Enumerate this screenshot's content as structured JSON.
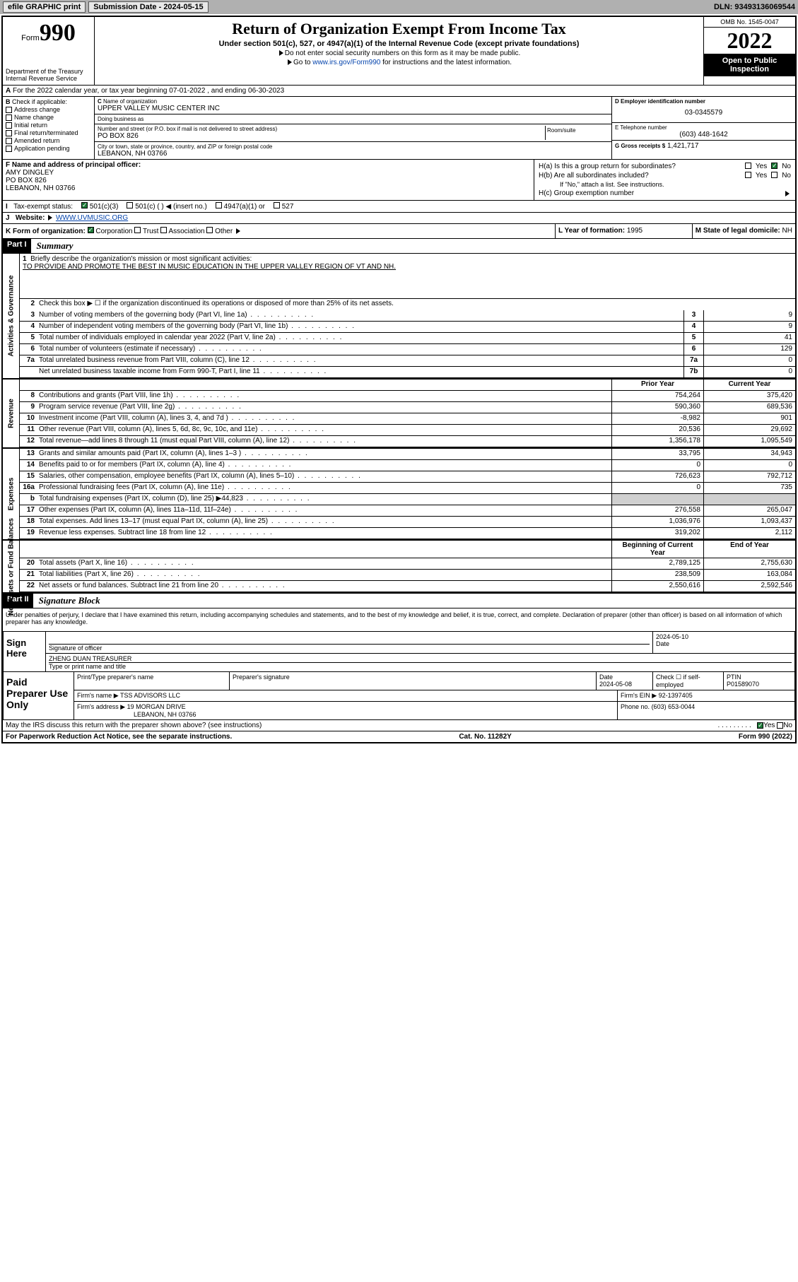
{
  "topbar": {
    "efile": "efile GRAPHIC print",
    "sub_label": "Submission Date - 2024-05-15",
    "dln": "DLN: 93493136069544"
  },
  "header": {
    "form_label": "Form",
    "form_num": "990",
    "dept": "Department of the Treasury\nInternal Revenue Service",
    "title": "Return of Organization Exempt From Income Tax",
    "subtitle": "Under section 501(c), 527, or 4947(a)(1) of the Internal Revenue Code (except private foundations)",
    "note1": "Do not enter social security numbers on this form as it may be made public.",
    "note2_pre": "Go to ",
    "note2_link": "www.irs.gov/Form990",
    "note2_post": " for instructions and the latest information.",
    "omb": "OMB No. 1545-0047",
    "year": "2022",
    "open": "Open to Public Inspection"
  },
  "rowA": "For the 2022 calendar year, or tax year beginning 07-01-2022  , and ending 06-30-2023",
  "colB": {
    "label": "Check if applicable:",
    "items": [
      "Address change",
      "Name change",
      "Initial return",
      "Final return/terminated",
      "Amended return",
      "Application pending"
    ]
  },
  "orgC": {
    "name_lbl": "Name of organization",
    "name": "UPPER VALLEY MUSIC CENTER INC",
    "dba_lbl": "Doing business as",
    "dba": "",
    "addr_lbl": "Number and street (or P.O. box if mail is not delivered to street address)",
    "room_lbl": "Room/suite",
    "addr": "PO BOX 826",
    "city_lbl": "City or town, state or province, country, and ZIP or foreign postal code",
    "city": "LEBANON, NH  03766"
  },
  "colDE": {
    "d_lbl": "D Employer identification number",
    "d_val": "03-0345579",
    "e_lbl": "E Telephone number",
    "e_val": "(603) 448-1642",
    "g_lbl": "G Gross receipts $",
    "g_val": "1,421,717"
  },
  "rowF": {
    "lbl": "F Name and address of principal officer:",
    "name": "AMY DINGLEY",
    "addr1": "PO BOX 826",
    "addr2": "LEBANON, NH  03766"
  },
  "rowH": {
    "ha": "H(a)  Is this a group return for subordinates?",
    "hb": "H(b)  Are all subordinates included?",
    "hb_note": "If \"No,\" attach a list. See instructions.",
    "hc": "H(c)  Group exemption number",
    "yes": "Yes",
    "no": "No"
  },
  "rowI": {
    "lbl": "Tax-exempt status:",
    "o1": "501(c)(3)",
    "o2": "501(c) (  )",
    "o2b": "(insert no.)",
    "o3": "4947(a)(1) or",
    "o4": "527"
  },
  "rowJ": {
    "lbl": "Website:",
    "val": "WWW.UVMUSIC.ORG"
  },
  "rowK": {
    "lbl": "K Form of organization:",
    "o1": "Corporation",
    "o2": "Trust",
    "o3": "Association",
    "o4": "Other"
  },
  "rowL": {
    "lbl": "L Year of formation:",
    "val": "1995"
  },
  "rowM": {
    "lbl": "M State of legal domicile:",
    "val": "NH"
  },
  "part1": {
    "hdr": "Part I",
    "title": "Summary",
    "side_gov": "Activities & Governance",
    "side_rev": "Revenue",
    "side_exp": "Expenses",
    "side_net": "Net Assets or Fund Balances",
    "l1_lbl": "Briefly describe the organization's mission or most significant activities:",
    "l1_val": "TO PROVIDE AND PROMOTE THE BEST IN MUSIC EDUCATION IN THE UPPER VALLEY REGION OF VT AND NH.",
    "l2": "Check this box ▶ ☐  if the organization discontinued its operations or disposed of more than 25% of its net assets.",
    "lines_gov": [
      {
        "n": "3",
        "t": "Number of voting members of the governing body (Part VI, line 1a)",
        "b": "3",
        "v": "9"
      },
      {
        "n": "4",
        "t": "Number of independent voting members of the governing body (Part VI, line 1b)",
        "b": "4",
        "v": "9"
      },
      {
        "n": "5",
        "t": "Total number of individuals employed in calendar year 2022 (Part V, line 2a)",
        "b": "5",
        "v": "41"
      },
      {
        "n": "6",
        "t": "Total number of volunteers (estimate if necessary)",
        "b": "6",
        "v": "129"
      },
      {
        "n": "7a",
        "t": "Total unrelated business revenue from Part VIII, column (C), line 12",
        "b": "7a",
        "v": "0"
      },
      {
        "n": "",
        "t": "Net unrelated business taxable income from Form 990-T, Part I, line 11",
        "b": "7b",
        "v": "0"
      }
    ],
    "col_prior": "Prior Year",
    "col_curr": "Current Year",
    "lines_rev": [
      {
        "n": "8",
        "t": "Contributions and grants (Part VIII, line 1h)",
        "p": "754,264",
        "c": "375,420"
      },
      {
        "n": "9",
        "t": "Program service revenue (Part VIII, line 2g)",
        "p": "590,360",
        "c": "689,536"
      },
      {
        "n": "10",
        "t": "Investment income (Part VIII, column (A), lines 3, 4, and 7d )",
        "p": "-8,982",
        "c": "901"
      },
      {
        "n": "11",
        "t": "Other revenue (Part VIII, column (A), lines 5, 6d, 8c, 9c, 10c, and 11e)",
        "p": "20,536",
        "c": "29,692"
      },
      {
        "n": "12",
        "t": "Total revenue—add lines 8 through 11 (must equal Part VIII, column (A), line 12)",
        "p": "1,356,178",
        "c": "1,095,549"
      }
    ],
    "lines_exp": [
      {
        "n": "13",
        "t": "Grants and similar amounts paid (Part IX, column (A), lines 1–3 )",
        "p": "33,795",
        "c": "34,943"
      },
      {
        "n": "14",
        "t": "Benefits paid to or for members (Part IX, column (A), line 4)",
        "p": "0",
        "c": "0"
      },
      {
        "n": "15",
        "t": "Salaries, other compensation, employee benefits (Part IX, column (A), lines 5–10)",
        "p": "726,623",
        "c": "792,712"
      },
      {
        "n": "16a",
        "t": "Professional fundraising fees (Part IX, column (A), line 11e)",
        "p": "0",
        "c": "735"
      },
      {
        "n": "b",
        "t": "Total fundraising expenses (Part IX, column (D), line 25) ▶44,823",
        "p": "",
        "c": "",
        "gray": true
      },
      {
        "n": "17",
        "t": "Other expenses (Part IX, column (A), lines 11a–11d, 11f–24e)",
        "p": "276,558",
        "c": "265,047"
      },
      {
        "n": "18",
        "t": "Total expenses. Add lines 13–17 (must equal Part IX, column (A), line 25)",
        "p": "1,036,976",
        "c": "1,093,437"
      },
      {
        "n": "19",
        "t": "Revenue less expenses. Subtract line 18 from line 12",
        "p": "319,202",
        "c": "2,112"
      }
    ],
    "col_beg": "Beginning of Current Year",
    "col_end": "End of Year",
    "lines_net": [
      {
        "n": "20",
        "t": "Total assets (Part X, line 16)",
        "p": "2,789,125",
        "c": "2,755,630"
      },
      {
        "n": "21",
        "t": "Total liabilities (Part X, line 26)",
        "p": "238,509",
        "c": "163,084"
      },
      {
        "n": "22",
        "t": "Net assets or fund balances. Subtract line 21 from line 20",
        "p": "2,550,616",
        "c": "2,592,546"
      }
    ]
  },
  "part2": {
    "hdr": "Part II",
    "title": "Signature Block",
    "decl": "Under penalties of perjury, I declare that I have examined this return, including accompanying schedules and statements, and to the best of my knowledge and belief, it is true, correct, and complete. Declaration of preparer (other than officer) is based on all information of which preparer has any knowledge.",
    "sign_here": "Sign Here",
    "sig_lbl": "Signature of officer",
    "sig_date_lbl": "Date",
    "sig_date": "2024-05-10",
    "name_lbl": "Type or print name and title",
    "name_val": "ZHENG DUAN TREASURER",
    "paid": "Paid Preparer Use Only",
    "prep_name_lbl": "Print/Type preparer's name",
    "prep_sig_lbl": "Preparer's signature",
    "prep_date_lbl": "Date",
    "prep_date": "2024-05-08",
    "prep_chk_lbl": "Check ☐ if self-employed",
    "ptin_lbl": "PTIN",
    "ptin": "P01589070",
    "firm_lbl": "Firm's name ▶",
    "firm": "TSS ADVISORS LLC",
    "ein_lbl": "Firm's EIN ▶",
    "ein": "92-1397405",
    "addr_lbl": "Firm's address ▶",
    "addr1": "19 MORGAN DRIVE",
    "addr2": "LEBANON, NH  03766",
    "phone_lbl": "Phone no.",
    "phone": "(603) 653-0044",
    "may_discuss": "May the IRS discuss this return with the preparer shown above? (see instructions)",
    "yes": "Yes",
    "no": "No"
  },
  "footer": {
    "left": "For Paperwork Reduction Act Notice, see the separate instructions.",
    "mid": "Cat. No. 11282Y",
    "right": "Form 990 (2022)"
  }
}
